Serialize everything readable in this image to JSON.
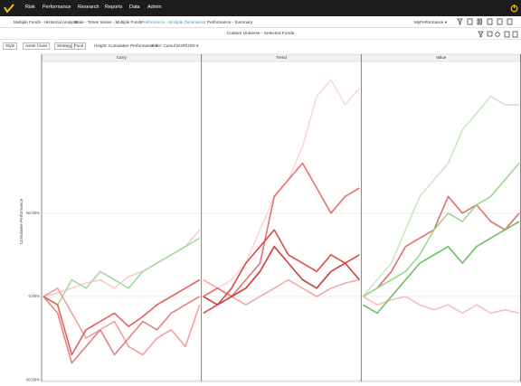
{
  "nav": {
    "items": [
      "Risk",
      "Performance",
      "Research",
      "Reports",
      "Data",
      "Admin"
    ]
  },
  "tabs": {
    "items": [
      "Multiple Funds - Historical Analysis",
      "State - Times Series - Multiple Funds",
      "Performance - Multiple Dimensions",
      "Performance - Summary"
    ],
    "active": 2,
    "view": "MyPerformance"
  },
  "header": {
    "title": "Custom Universe - Selected Funds"
  },
  "toolbar": {
    "filters": [
      "Style",
      "Asset Class",
      "Strategy",
      "Fund"
    ],
    "height": "Height: Cumulative Performance",
    "color": "Color: Cumul EUR/USD"
  },
  "chart_data": [
    {
      "type": "line",
      "title": "Carry",
      "ylabel": "Cumulative Performance",
      "ylim": [
        -51,
        141
      ],
      "yticks": [
        {
          "value": -50,
          "label": "-50.00%"
        },
        {
          "value": 0,
          "label": "0.00%"
        },
        {
          "value": 50,
          "label": "50.00%"
        }
      ],
      "series": [
        {
          "color": "#f7cccc",
          "values": [
            0,
            2,
            5,
            8,
            10,
            5,
            12,
            15,
            20,
            25,
            30,
            40
          ]
        },
        {
          "color": "#a8d8a0",
          "values": [
            0,
            -5,
            10,
            5,
            15,
            10,
            5,
            15,
            20,
            25,
            30,
            35
          ]
        },
        {
          "color": "#f0a0a0",
          "values": [
            0,
            5,
            -10,
            -25,
            -20,
            -15,
            -30,
            -35,
            -25,
            -20,
            -30,
            -5
          ]
        },
        {
          "color": "#e88080",
          "values": [
            0,
            -10,
            -40,
            -30,
            -20,
            -35,
            -25,
            -15,
            -20,
            -10,
            -5,
            0
          ]
        },
        {
          "color": "#e06060",
          "values": [
            0,
            -5,
            -35,
            -20,
            -15,
            -10,
            -18,
            -12,
            -5,
            0,
            5,
            10
          ]
        }
      ]
    },
    {
      "type": "line",
      "title": "Trend",
      "ylim": [
        -51,
        141
      ],
      "yticks": [
        -50,
        0,
        50
      ],
      "series": [
        {
          "color": "#fbd8d8",
          "values": [
            0,
            5,
            10,
            20,
            40,
            60,
            70,
            90,
            120,
            130,
            115,
            125
          ]
        },
        {
          "color": "#f2aaaa",
          "values": [
            10,
            5,
            0,
            -5,
            0,
            5,
            10,
            5,
            0,
            5,
            8,
            10
          ]
        },
        {
          "color": "#e87070",
          "values": [
            0,
            5,
            0,
            10,
            20,
            60,
            70,
            80,
            65,
            50,
            60,
            65
          ]
        },
        {
          "color": "#d94c4c",
          "values": [
            -10,
            -5,
            5,
            20,
            30,
            40,
            25,
            20,
            15,
            25,
            20,
            25
          ]
        },
        {
          "color": "#c94040",
          "values": [
            0,
            -5,
            0,
            5,
            15,
            30,
            20,
            10,
            5,
            15,
            20,
            10
          ]
        }
      ]
    },
    {
      "type": "line",
      "title": "Value",
      "ylim": [
        -51,
        141
      ],
      "yticks": [
        -50,
        0,
        50
      ],
      "series": [
        {
          "color": "#c8e8c0",
          "values": [
            0,
            10,
            20,
            40,
            60,
            70,
            80,
            100,
            110,
            120,
            115,
            115
          ]
        },
        {
          "color": "#f5c0c0",
          "values": [
            0,
            -5,
            -2,
            0,
            -5,
            -8,
            -5,
            -10,
            -5,
            -10,
            -8,
            -10
          ]
        },
        {
          "color": "#e07070",
          "values": [
            0,
            5,
            15,
            30,
            35,
            40,
            60,
            50,
            55,
            45,
            40,
            50
          ]
        },
        {
          "color": "#9fd690",
          "values": [
            0,
            5,
            10,
            15,
            25,
            40,
            50,
            45,
            55,
            60,
            70,
            80
          ]
        },
        {
          "color": "#6cc060",
          "values": [
            -5,
            -10,
            0,
            10,
            20,
            25,
            30,
            20,
            30,
            35,
            40,
            45
          ]
        }
      ]
    }
  ]
}
